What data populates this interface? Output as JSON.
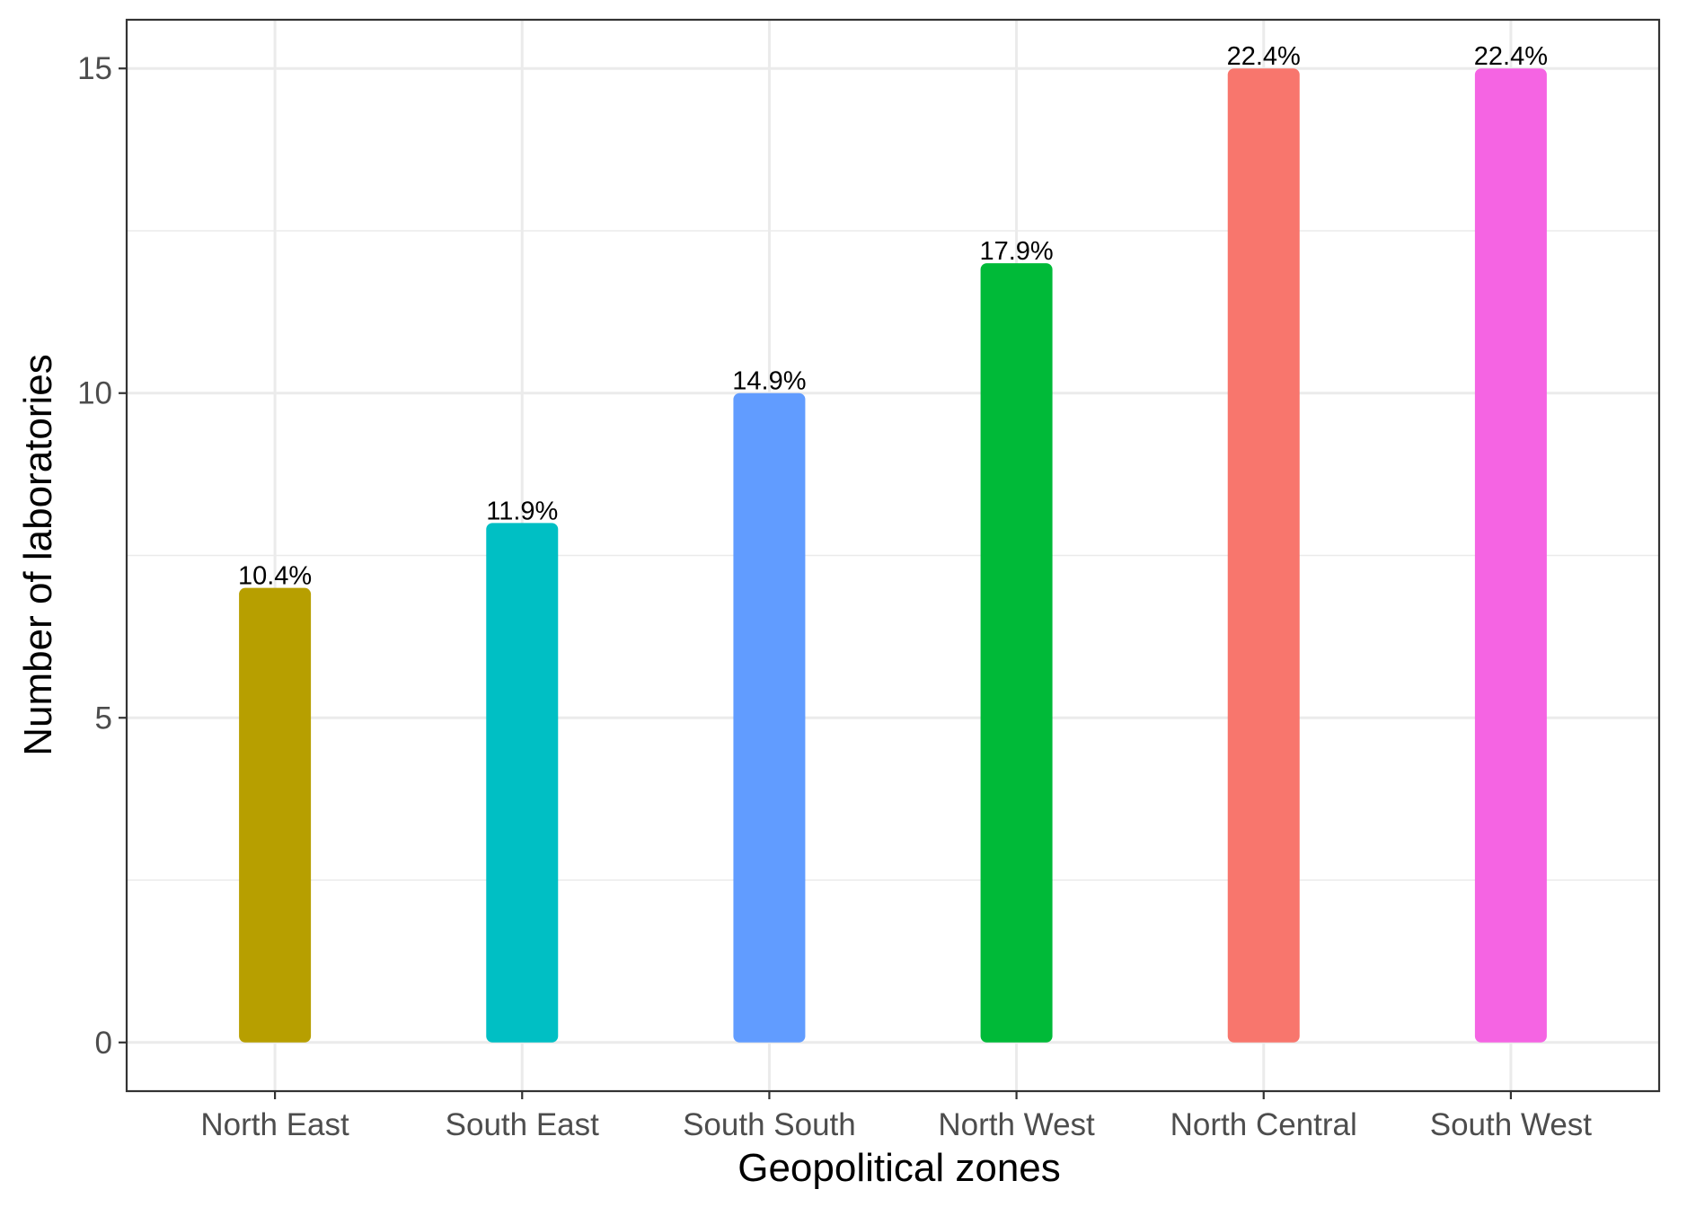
{
  "chart_data": {
    "type": "bar",
    "title": "",
    "xlabel": "Geopolitical zones",
    "ylabel": "Number of laboratories",
    "categories": [
      "North East",
      "South East",
      "South South",
      "North West",
      "North Central",
      "South West"
    ],
    "values": [
      7,
      8,
      10,
      12,
      15,
      15
    ],
    "data_labels": [
      "10.4%",
      "11.9%",
      "14.9%",
      "17.9%",
      "22.4%",
      "22.4%"
    ],
    "colors": [
      "#B79F00",
      "#00BFC4",
      "#619CFF",
      "#00BA38",
      "#F8766D",
      "#F564E3"
    ],
    "yticks": [
      0,
      5,
      10,
      15
    ],
    "ytick_labels": [
      "0",
      "5",
      "10",
      "15"
    ],
    "ylim": [
      -0.75,
      15.75
    ],
    "grid": true,
    "legend": "none"
  }
}
